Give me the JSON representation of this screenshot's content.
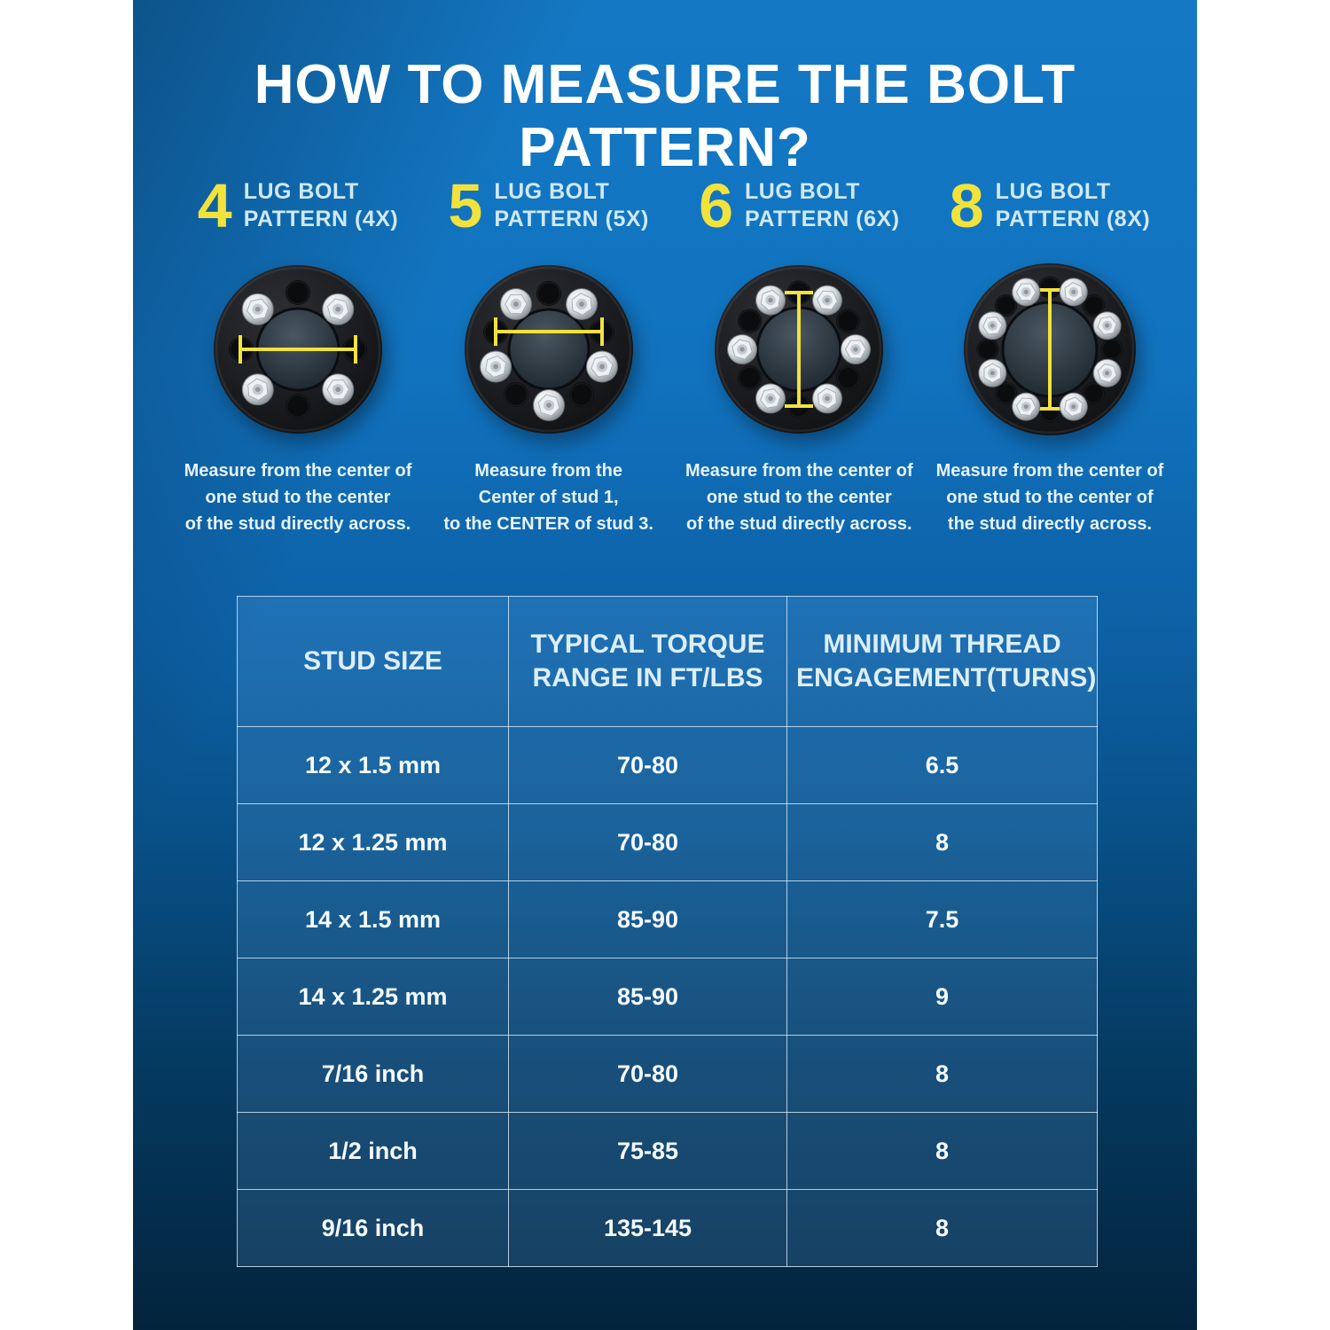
{
  "page": {
    "title": "HOW TO MEASURE THE BOLT PATTERN?"
  },
  "colors": {
    "accent_yellow": "#F2E23C",
    "panel_blue_top": "#1478C4",
    "panel_navy_bottom": "#03243D",
    "light_blue_text": "#CFE9F7",
    "white_text": "#FFFFFF"
  },
  "patterns": [
    {
      "count": "4",
      "label": "LUG BOLT\nPATTERN (4X)",
      "caption": "Measure from the center of\none stud to the center\nof the stud directly across."
    },
    {
      "count": "5",
      "label": "LUG BOLT\nPATTERN (5X)",
      "caption": "Measure from the\nCenter of stud 1,\nto the CENTER of stud 3."
    },
    {
      "count": "6",
      "label": "LUG BOLT\nPATTERN (6X)",
      "caption": "Measure from the center of\none stud to the center\nof the stud directly across."
    },
    {
      "count": "8",
      "label": "LUG BOLT\nPATTERN (8X)",
      "caption": "Measure from the center of\none stud to the center of\nthe stud directly across."
    }
  ],
  "table": {
    "headers": [
      "STUD SIZE",
      "TYPICAL TORQUE\nRANGE IN FT/LBS",
      "MINIMUM THREAD\nENGAGEMENT(TURNS)"
    ],
    "rows": [
      [
        "12 x 1.5 mm",
        "70-80",
        "6.5"
      ],
      [
        "12 x 1.25 mm",
        "70-80",
        "8"
      ],
      [
        "14 x 1.5 mm",
        "85-90",
        "7.5"
      ],
      [
        "14 x 1.25 mm",
        "85-90",
        "9"
      ],
      [
        "7/16 inch",
        "70-80",
        "8"
      ],
      [
        "1/2 inch",
        "75-85",
        "8"
      ],
      [
        "9/16 inch",
        "135-145",
        "8"
      ]
    ]
  }
}
